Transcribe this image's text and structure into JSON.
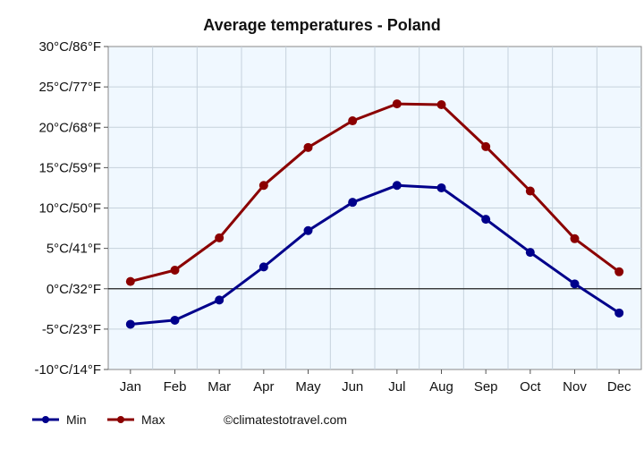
{
  "chart_data": {
    "type": "line",
    "title": "Average temperatures - Poland",
    "categories": [
      "Jan",
      "Feb",
      "Mar",
      "Apr",
      "May",
      "Jun",
      "Jul",
      "Aug",
      "Sep",
      "Oct",
      "Nov",
      "Dec"
    ],
    "y_ticks": [
      "-10°C/14°F",
      "-5°C/23°F",
      "0°C/32°F",
      "5°C/41°F",
      "10°C/50°F",
      "15°C/59°F",
      "20°C/68°F",
      "25°C/77°F",
      "30°C/86°F"
    ],
    "ylim": [
      -10,
      30
    ],
    "y_step": 5,
    "grid": true,
    "legend_position": "bottom-left",
    "series": [
      {
        "name": "Min",
        "color": "#00008b",
        "values": [
          -4.4,
          -3.9,
          -1.4,
          2.7,
          7.2,
          10.7,
          12.8,
          12.5,
          8.6,
          4.5,
          0.6,
          -3.0
        ]
      },
      {
        "name": "Max",
        "color": "#8b0000",
        "values": [
          0.9,
          2.3,
          6.3,
          12.8,
          17.5,
          20.8,
          22.9,
          22.8,
          17.6,
          12.1,
          6.2,
          2.1
        ]
      }
    ],
    "credit": "©climatestotravel.com"
  }
}
